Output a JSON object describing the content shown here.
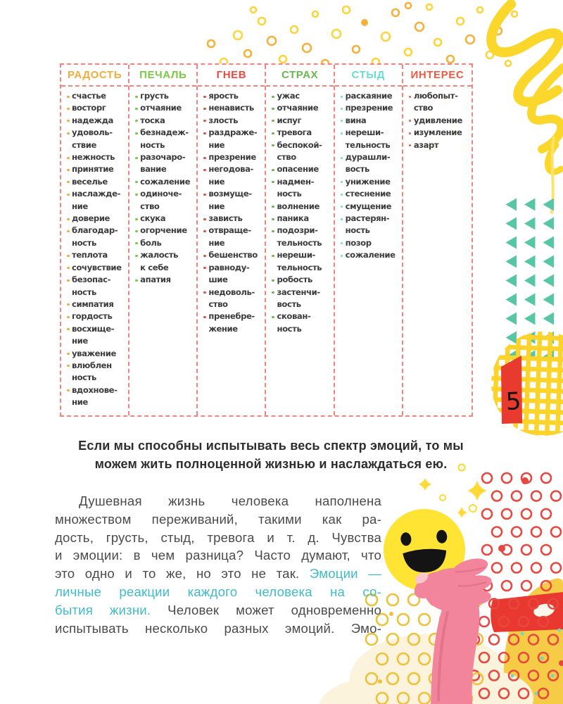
{
  "page": {
    "number": "5"
  },
  "emotion_table": {
    "columns": [
      {
        "label": "РАДОСТЬ",
        "color": "#f3ac3c",
        "items": [
          "счастье",
          "восторг",
          "надежда",
          "удоволь-\nствие",
          "нежность",
          "принятие",
          "веселье",
          "наслажде-\nние",
          "доверие",
          "благодар-\nность",
          "теплота",
          "сочувствие",
          "безопас-\nность",
          "симпатия",
          "гордость",
          "восхище-\nние",
          "уважение",
          "влюблен\nность",
          "вдохнове-\nние"
        ]
      },
      {
        "label": "ПЕЧАЛЬ",
        "color": "#7ac943",
        "items": [
          "грусть",
          "отчаяние",
          "тоска",
          "безнадеж-\nность",
          "разочаро-\nвание",
          "сожаление",
          "одиноче-\nство",
          "скука",
          "огорчение",
          "боль",
          "жалость\nк себе",
          "апатия"
        ]
      },
      {
        "label": "ГНЕВ",
        "color": "#e94a3f",
        "items": [
          "ярость",
          "ненависть",
          "злость",
          "раздраже-\nние",
          "презрение",
          "негодова-\nние",
          "возмуще-\nние",
          "зависть",
          "отвраще-\nние",
          "бешенство",
          "равноду-\nшие",
          "недоволь-\nство",
          "пренебре-\nжение"
        ]
      },
      {
        "label": "СТРАХ",
        "color": "#66b94e",
        "items": [
          "ужас",
          "отчаяние",
          "испуг",
          "тревога",
          "беспокой-\nство",
          "опасение",
          "надмен-\nность",
          "волнение",
          "паника",
          "подозри-\nтельность",
          "нереши-\nтельность",
          "робость",
          "застенчи-\nвость",
          "скован-\nность"
        ]
      },
      {
        "label": "СТЫД",
        "color": "#68dbd4",
        "items": [
          "раскаяние",
          "презрение",
          "вина",
          "нереши-\nтельность",
          "дурашли-\nвость",
          "унижение",
          "стеснение",
          "смущение",
          "растерян-\nность",
          "позор",
          "сожаление"
        ]
      },
      {
        "label": "ИНТЕРЕС",
        "color": "#f0593f",
        "items": [
          "любопыт-\nство",
          "удивление",
          "изумление",
          "азарт"
        ]
      }
    ]
  },
  "quote": "Если мы способны испытывать весь спектр эмоций, то мы\nможем жить полноценной жизнью и наслаждаться ею.",
  "paragraph": {
    "text_color": "#4b4b4b",
    "teal_color": "#3ebcc9",
    "lines": [
      {
        "indent": true,
        "parts": [
          {
            "text": "Душевная жизнь человека наполнена"
          }
        ]
      },
      {
        "parts": [
          {
            "text": "множеством переживаний, такими как ра-"
          }
        ]
      },
      {
        "parts": [
          {
            "text": "дость, грусть, стыд, тревога и т. д. Чувства"
          }
        ]
      },
      {
        "parts": [
          {
            "text": "и эмоции: в чем разница? Часто думают, что"
          }
        ]
      },
      {
        "parts": [
          {
            "text": "это одно и то же, но это не так. "
          },
          {
            "text": "Эмоции —",
            "teal": true
          }
        ]
      },
      {
        "parts": [
          {
            "text": "личные реакции каждого человека на со-",
            "teal": true
          }
        ]
      },
      {
        "parts": [
          {
            "text": "бытия жизни. ",
            "teal": true
          },
          {
            "text": "Человек может одновременно"
          }
        ]
      },
      {
        "parts": [
          {
            "text": "испытывать несколько разных эмоций. Эмо-"
          }
        ]
      }
    ]
  }
}
